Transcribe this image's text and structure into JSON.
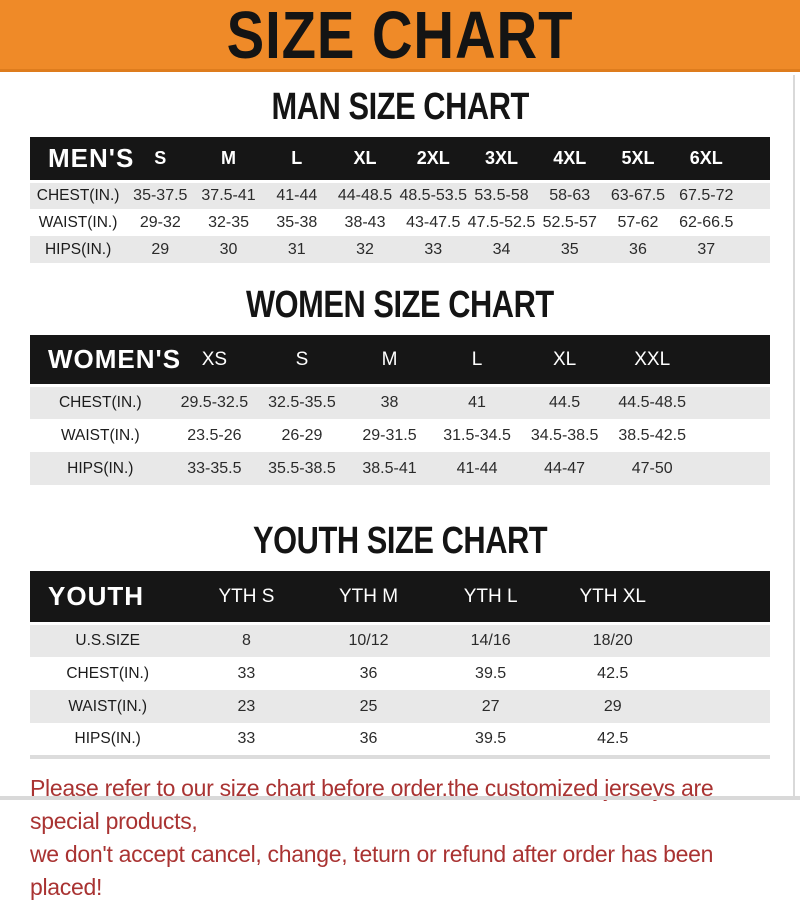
{
  "banner": {
    "title": "SIZE CHART"
  },
  "sections": [
    {
      "heading": "MAN SIZE CHART",
      "table": {
        "header_label": "MEN'S",
        "columns": [
          "S",
          "M",
          "L",
          "XL",
          "2XL",
          "3XL",
          "4XL",
          "5XL",
          "6XL"
        ],
        "rows": [
          {
            "label": "CHEST(IN.)",
            "values": [
              "35-37.5",
              "37.5-41",
              "41-44",
              "44-48.5",
              "48.5-53.5",
              "53.5-58",
              "58-63",
              "63-67.5",
              "67.5-72"
            ]
          },
          {
            "label": "WAIST(IN.)",
            "values": [
              "29-32",
              "32-35",
              "35-38",
              "38-43",
              "43-47.5",
              "47.5-52.5",
              "52.5-57",
              "57-62",
              "62-66.5"
            ]
          },
          {
            "label": "HIPS(IN.)",
            "values": [
              "29",
              "30",
              "31",
              "32",
              "33",
              "34",
              "35",
              "36",
              "37"
            ]
          }
        ]
      }
    },
    {
      "heading": "WOMEN SIZE CHART",
      "table": {
        "header_label": "WOMEN'S",
        "columns": [
          "XS",
          "S",
          "M",
          "L",
          "XL",
          "XXL"
        ],
        "rows": [
          {
            "label": "CHEST(IN.)",
            "values": [
              "29.5-32.5",
              "32.5-35.5",
              "38",
              "41",
              "44.5",
              "44.5-48.5"
            ]
          },
          {
            "label": "WAIST(IN.)",
            "values": [
              "23.5-26",
              "26-29",
              "29-31.5",
              "31.5-34.5",
              "34.5-38.5",
              "38.5-42.5"
            ]
          },
          {
            "label": "HIPS(IN.)",
            "values": [
              "33-35.5",
              "35.5-38.5",
              "38.5-41",
              "41-44",
              "44-47",
              "47-50"
            ]
          }
        ]
      }
    },
    {
      "heading": "YOUTH SIZE CHART",
      "table": {
        "header_label": "YOUTH",
        "columns": [
          "YTH S",
          "YTH M",
          "YTH L",
          "YTH XL"
        ],
        "rows": [
          {
            "label": "U.S.SIZE",
            "values": [
              "8",
              "10/12",
              "14/16",
              "18/20"
            ]
          },
          {
            "label": "CHEST(IN.)",
            "values": [
              "33",
              "36",
              "39.5",
              "42.5"
            ]
          },
          {
            "label": "WAIST(IN.)",
            "values": [
              "23",
              "25",
              "27",
              "29"
            ]
          },
          {
            "label": "HIPS(IN.)",
            "values": [
              "33",
              "36",
              "39.5",
              "42.5"
            ]
          }
        ]
      }
    }
  ],
  "disclaimer": {
    "line1": "Please refer to our size chart before order,the customized jerseys are special products,",
    "line2": "we don't accept cancel, change, teturn or refund after order has been placed!"
  },
  "colors": {
    "banner_orange": "#ef8a28",
    "banner_orange_dark": "#de7c1d",
    "header_bar_black": "#161616",
    "row_grey": "#e8e8e8",
    "disclaimer_red": "#a93332"
  }
}
